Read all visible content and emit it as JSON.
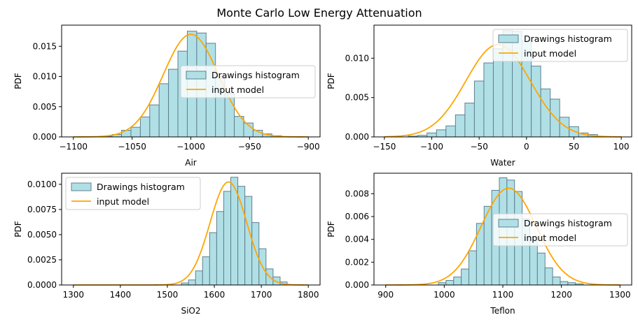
{
  "figure": {
    "title": "Monte Carlo Low Energy Attenuation"
  },
  "colors": {
    "hist_fill": "#b0e0e6",
    "hist_edge": "#5f7f8f",
    "model_line": "#ffa500"
  },
  "legend_labels": {
    "hist": "Drawings histogram",
    "model": "input model"
  },
  "chart_data": [
    {
      "type": "bar",
      "subtype": "histogram-with-pdf-curve",
      "xlabel": "Air",
      "ylabel": "PDF",
      "xlim": [
        -1110,
        -890
      ],
      "ylim": [
        0,
        0.0185
      ],
      "xticks": [
        -1100,
        -1050,
        -1000,
        -950,
        -900
      ],
      "xtick_labels": [
        "−1100",
        "−1050",
        "−1000",
        "−950",
        "−900"
      ],
      "yticks": [
        0,
        0.005,
        0.01,
        0.015
      ],
      "ytick_labels": [
        "0.000",
        "0.005",
        "0.010",
        "0.015"
      ],
      "legend_position": "center-right",
      "bin_edges": [
        -1075,
        -1067,
        -1059,
        -1051,
        -1043,
        -1035,
        -1027,
        -1019,
        -1011,
        -1003,
        -995,
        -987,
        -979,
        -971,
        -963,
        -955,
        -947,
        -939,
        -931,
        -923
      ],
      "bin_values": [
        0.0001,
        0.0004,
        0.0011,
        0.0016,
        0.0033,
        0.0053,
        0.0088,
        0.0112,
        0.0142,
        0.0175,
        0.0172,
        0.0155,
        0.01,
        0.0072,
        0.0034,
        0.0023,
        0.0011,
        0.0005,
        0.0002
      ],
      "model": {
        "name": "input model",
        "mean": -1000,
        "std": 23.5,
        "x_range": [
          -1100,
          -900
        ]
      }
    },
    {
      "type": "bar",
      "subtype": "histogram-with-pdf-curve",
      "xlabel": "Water",
      "ylabel": "PDF",
      "xlim": [
        -161,
        111
      ],
      "ylim": [
        0,
        0.0142
      ],
      "xticks": [
        -150,
        -100,
        -50,
        0,
        50,
        100
      ],
      "xtick_labels": [
        "−150",
        "−100",
        "−50",
        "0",
        "50",
        "100"
      ],
      "yticks": [
        0,
        0.005,
        0.01
      ],
      "ytick_labels": [
        "0.000",
        "0.005",
        "0.010"
      ],
      "legend_position": "upper-right",
      "bin_edges": [
        -125,
        -115,
        -105,
        -95,
        -85,
        -75,
        -65,
        -55,
        -45,
        -35,
        -25,
        -15,
        -5,
        5,
        15,
        25,
        35,
        45,
        55,
        65,
        75
      ],
      "bin_values": [
        0.0001,
        0.0002,
        0.0005,
        0.0009,
        0.0014,
        0.0028,
        0.0043,
        0.0071,
        0.0094,
        0.0112,
        0.0135,
        0.0134,
        0.0122,
        0.009,
        0.0061,
        0.0048,
        0.0025,
        0.0013,
        0.0005,
        0.0003
      ],
      "model": {
        "name": "input model",
        "mean": -30,
        "std": 34,
        "x_range": [
          -150,
          100
        ]
      }
    },
    {
      "type": "bar",
      "subtype": "histogram-with-pdf-curve",
      "xlabel": "SiO2",
      "ylabel": "PDF",
      "xlim": [
        1275,
        1825
      ],
      "ylim": [
        0,
        0.0111
      ],
      "xticks": [
        1300,
        1400,
        1500,
        1600,
        1700,
        1800
      ],
      "xtick_labels": [
        "1300",
        "1400",
        "1500",
        "1600",
        "1700",
        "1800"
      ],
      "yticks": [
        0,
        0.0025,
        0.005,
        0.0075,
        0.01
      ],
      "ytick_labels": [
        "0.0000",
        "0.0025",
        "0.0050",
        "0.0075",
        "0.0100"
      ],
      "legend_position": "upper-left",
      "bin_edges": [
        1530,
        1545,
        1560,
        1575,
        1590,
        1605,
        1620,
        1635,
        1650,
        1665,
        1680,
        1695,
        1710,
        1725,
        1740,
        1755
      ],
      "bin_values": [
        0.0002,
        0.0005,
        0.0014,
        0.0028,
        0.0052,
        0.0073,
        0.0093,
        0.0107,
        0.0098,
        0.0088,
        0.0062,
        0.0036,
        0.0016,
        0.0008,
        0.0003
      ],
      "model": {
        "name": "input model",
        "mean": 1630,
        "std": 39,
        "x_range": [
          1300,
          1800
        ]
      }
    },
    {
      "type": "bar",
      "subtype": "histogram-with-pdf-curve",
      "xlabel": "Teflon",
      "ylabel": "PDF",
      "xlim": [
        880,
        1320
      ],
      "ylim": [
        0,
        0.0098
      ],
      "xticks": [
        900,
        1000,
        1100,
        1200,
        1300
      ],
      "xtick_labels": [
        "900",
        "1000",
        "1100",
        "1200",
        "1300"
      ],
      "yticks": [
        0,
        0.002,
        0.004,
        0.006,
        0.008
      ],
      "ytick_labels": [
        "0.000",
        "0.002",
        "0.004",
        "0.006",
        "0.008"
      ],
      "legend_position": "center-right",
      "bin_edges": [
        990,
        1003,
        1016,
        1029,
        1042,
        1055,
        1068,
        1081,
        1094,
        1107,
        1120,
        1133,
        1146,
        1159,
        1172,
        1185,
        1198,
        1211,
        1224,
        1237
      ],
      "bin_values": [
        0.0002,
        0.0004,
        0.0007,
        0.0014,
        0.003,
        0.0054,
        0.0069,
        0.0083,
        0.0094,
        0.0092,
        0.0082,
        0.0058,
        0.0042,
        0.0028,
        0.0015,
        0.0007,
        0.0003,
        0.0002,
        0.0001
      ],
      "model": {
        "name": "input model",
        "mean": 1110,
        "std": 47,
        "x_range": [
          900,
          1300
        ]
      }
    }
  ]
}
